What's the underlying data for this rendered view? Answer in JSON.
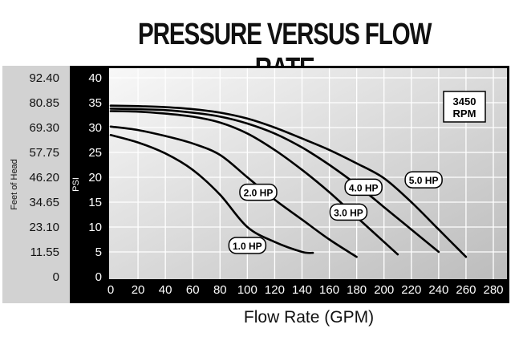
{
  "chart_data": {
    "type": "line",
    "title": "PRESSURE VERSUS FLOW RATE",
    "xlabel": "Flow Rate (GPM)",
    "ylabel": "PSI",
    "ylabel_secondary": "Feet of Head",
    "xlim": [
      0,
      280
    ],
    "ylim": [
      0,
      40
    ],
    "x_ticks": [
      "0",
      "20",
      "40",
      "60",
      "80",
      "100",
      "120",
      "140",
      "160",
      "180",
      "200",
      "220",
      "240",
      "260",
      "280"
    ],
    "y_ticks": [
      "0",
      "5",
      "10",
      "15",
      "20",
      "25",
      "30",
      "35",
      "40"
    ],
    "y_ticks_secondary": [
      "0",
      "11.55",
      "23.10",
      "34.65",
      "46.20",
      "57.75",
      "69.30",
      "80.85",
      "92.40"
    ],
    "grid": true,
    "annotation": "3450\nRPM",
    "series": [
      {
        "name": "1.0 HP",
        "x": [
          0,
          20,
          40,
          60,
          80,
          100,
          120,
          140,
          148
        ],
        "y": [
          28.5,
          27,
          24.8,
          21.5,
          16.5,
          10,
          7,
          5,
          4.8
        ]
      },
      {
        "name": "2.0 HP",
        "x": [
          0,
          20,
          40,
          60,
          80,
          100,
          120,
          140,
          160,
          180
        ],
        "y": [
          30.2,
          29.5,
          28.3,
          26.8,
          24.5,
          20,
          15.5,
          11.5,
          7.5,
          4
        ]
      },
      {
        "name": "3.0 HP",
        "x": [
          0,
          20,
          40,
          60,
          80,
          100,
          120,
          140,
          160,
          180,
          200,
          210
        ],
        "y": [
          33.3,
          33.2,
          32.8,
          32.2,
          31,
          28.8,
          25.5,
          21.5,
          17,
          12,
          7,
          4.5
        ]
      },
      {
        "name": "4.0 HP",
        "x": [
          0,
          20,
          40,
          60,
          80,
          100,
          120,
          140,
          160,
          180,
          200,
          220,
          240
        ],
        "y": [
          33.8,
          33.7,
          33.5,
          33,
          32.2,
          30.8,
          28.8,
          26,
          22.5,
          18.5,
          14,
          9.5,
          5
        ]
      },
      {
        "name": "5.0 HP",
        "x": [
          0,
          20,
          40,
          60,
          80,
          100,
          120,
          140,
          160,
          180,
          200,
          220,
          240,
          260
        ],
        "y": [
          34.4,
          34.3,
          34.1,
          33.7,
          33,
          31.8,
          30,
          27.8,
          25.5,
          22.8,
          19.8,
          15,
          9.5,
          4
        ]
      }
    ]
  }
}
